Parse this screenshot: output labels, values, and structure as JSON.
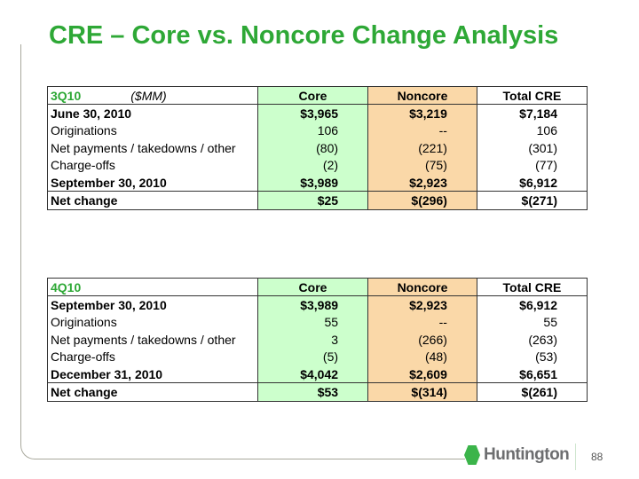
{
  "title": "CRE – Core vs. Noncore Change Analysis",
  "columns": [
    "Core",
    "Noncore",
    "Total CRE"
  ],
  "tables": [
    {
      "period": "3Q10",
      "unit": "($MM)",
      "rows": [
        {
          "label": "June 30, 2010",
          "core": "$3,965",
          "noncore": "$3,219",
          "total": "$7,184"
        },
        {
          "label": "Originations",
          "core": "106",
          "noncore": "--",
          "total": "106"
        },
        {
          "label": "Net payments / takedowns / other",
          "core": "(80)",
          "noncore": "(221)",
          "total": "(301)"
        },
        {
          "label": "Charge-offs",
          "core": "(2)",
          "noncore": "(75)",
          "total": "(77)"
        },
        {
          "label": "September 30, 2010",
          "core": "$3,989",
          "noncore": "$2,923",
          "total": "$6,912"
        },
        {
          "label": "Net change",
          "core": "$25",
          "noncore": "$(296)",
          "total": "$(271)"
        }
      ]
    },
    {
      "period": "4Q10",
      "rows": [
        {
          "label": "September 30, 2010",
          "core": "$3,989",
          "noncore": "$2,923",
          "total": "$6,912"
        },
        {
          "label": "Originations",
          "core": "55",
          "noncore": "--",
          "total": "55"
        },
        {
          "label": "Net payments / takedowns / other",
          "core": "3",
          "noncore": "(266)",
          "total": "(263)"
        },
        {
          "label": "Charge-offs",
          "core": "(5)",
          "noncore": "(48)",
          "total": "(53)"
        },
        {
          "label": "December 31, 2010",
          "core": "$4,042",
          "noncore": "$2,609",
          "total": "$6,651"
        },
        {
          "label": "Net change",
          "core": "$53",
          "noncore": "$(314)",
          "total": "$(261)"
        }
      ]
    }
  ],
  "footer": {
    "brand": "Huntington",
    "page_number": "88"
  }
}
